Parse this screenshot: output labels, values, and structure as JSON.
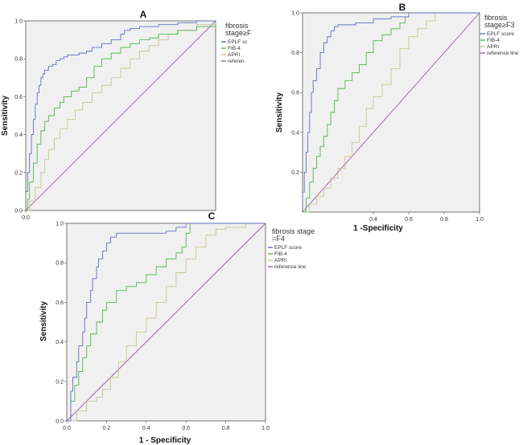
{
  "chart_data": [
    {
      "panel": "A",
      "type": "line",
      "title": "A",
      "xlabel": "",
      "ylabel": "Sensitivity",
      "xlim": [
        0,
        1
      ],
      "ylim": [
        0,
        1
      ],
      "x_ticks": [
        "0.0"
      ],
      "y_ticks": [
        "0.0",
        "0.2",
        "0.4",
        "0.6",
        "0.8",
        "1.0"
      ],
      "legend_title": [
        "fibrosis",
        "stage≥F"
      ],
      "legend_location": "right",
      "series": [
        {
          "name": "EPLF sc",
          "color": "#6070c0",
          "x": [
            0,
            0,
            0.01,
            0.02,
            0.03,
            0.04,
            0.05,
            0.06,
            0.07,
            0.08,
            0.09,
            0.1,
            0.12,
            0.14,
            0.16,
            0.18,
            0.2,
            0.22,
            0.25,
            0.28,
            0.32,
            0.35,
            0.4,
            0.45,
            0.5,
            0.52,
            0.55,
            0.6,
            0.65,
            0.7,
            0.75,
            0.8,
            0.9,
            1.0
          ],
          "y": [
            0,
            0.1,
            0.2,
            0.3,
            0.4,
            0.48,
            0.56,
            0.62,
            0.66,
            0.7,
            0.72,
            0.74,
            0.76,
            0.77,
            0.79,
            0.8,
            0.81,
            0.82,
            0.82,
            0.83,
            0.84,
            0.86,
            0.88,
            0.9,
            0.93,
            0.95,
            0.96,
            0.97,
            0.97,
            0.98,
            0.98,
            0.99,
            1.0,
            1.0
          ]
        },
        {
          "name": "FIB-4",
          "color": "#4fb84f",
          "x": [
            0,
            0.01,
            0.02,
            0.04,
            0.06,
            0.08,
            0.1,
            0.12,
            0.15,
            0.18,
            0.2,
            0.24,
            0.28,
            0.32,
            0.36,
            0.4,
            0.45,
            0.5,
            0.55,
            0.6,
            0.65,
            0.7,
            0.8,
            0.9,
            1.0
          ],
          "y": [
            0,
            0.06,
            0.15,
            0.25,
            0.35,
            0.42,
            0.47,
            0.5,
            0.54,
            0.57,
            0.6,
            0.63,
            0.65,
            0.7,
            0.76,
            0.8,
            0.83,
            0.86,
            0.88,
            0.9,
            0.91,
            0.93,
            0.95,
            0.97,
            1.0
          ]
        },
        {
          "name": "APRI",
          "color": "#cbc396",
          "x": [
            0,
            0.02,
            0.05,
            0.08,
            0.1,
            0.12,
            0.15,
            0.18,
            0.22,
            0.26,
            0.3,
            0.35,
            0.4,
            0.45,
            0.5,
            0.55,
            0.6,
            0.65,
            0.7,
            0.75,
            0.8,
            0.9,
            1.0
          ],
          "y": [
            0,
            0.05,
            0.12,
            0.2,
            0.27,
            0.32,
            0.38,
            0.43,
            0.48,
            0.53,
            0.57,
            0.62,
            0.66,
            0.7,
            0.75,
            0.8,
            0.84,
            0.87,
            0.9,
            0.93,
            0.95,
            0.98,
            1.0
          ]
        },
        {
          "name": "referen",
          "color": "#9b5aa8",
          "x": [
            0,
            1
          ],
          "y": [
            0,
            1
          ]
        }
      ]
    },
    {
      "panel": "B",
      "type": "line",
      "title": "B",
      "xlabel": "1 -Specificity",
      "ylabel": "Sensitivity",
      "xlim": [
        0,
        1
      ],
      "ylim": [
        0,
        1
      ],
      "x_ticks": [
        "0.4",
        "0.6",
        "0.8",
        "1.0"
      ],
      "y_ticks": [
        "0.2",
        "0.4",
        "0.6",
        "0.8",
        "1.0"
      ],
      "legend_title": [
        "fibrosis",
        "stage≥F3"
      ],
      "legend_location": "right",
      "series": [
        {
          "name": "EPLF score",
          "color": "#6070c0",
          "x": [
            0,
            0,
            0.01,
            0.02,
            0.03,
            0.04,
            0.05,
            0.06,
            0.08,
            0.1,
            0.12,
            0.14,
            0.16,
            0.18,
            0.2,
            0.25,
            0.3,
            0.4,
            0.5,
            0.6,
            0.7,
            0.8,
            1.0
          ],
          "y": [
            0,
            0.1,
            0.2,
            0.3,
            0.4,
            0.5,
            0.6,
            0.66,
            0.72,
            0.8,
            0.85,
            0.88,
            0.91,
            0.93,
            0.94,
            0.94,
            0.95,
            0.97,
            0.98,
            1.0,
            1.0,
            1.0,
            1.0
          ]
        },
        {
          "name": "FIB-4",
          "color": "#4fb84f",
          "x": [
            0,
            0.02,
            0.04,
            0.06,
            0.08,
            0.1,
            0.12,
            0.14,
            0.16,
            0.18,
            0.2,
            0.24,
            0.28,
            0.32,
            0.36,
            0.4,
            0.45,
            0.5,
            0.55,
            0.58,
            0.6,
            0.7,
            0.8,
            1.0
          ],
          "y": [
            0,
            0.07,
            0.15,
            0.22,
            0.28,
            0.33,
            0.38,
            0.44,
            0.5,
            0.56,
            0.62,
            0.66,
            0.7,
            0.74,
            0.8,
            0.86,
            0.89,
            0.92,
            0.95,
            0.98,
            1.0,
            1.0,
            1.0,
            1.0
          ]
        },
        {
          "name": "APRI",
          "color": "#cbc396",
          "x": [
            0,
            0.04,
            0.08,
            0.12,
            0.16,
            0.2,
            0.24,
            0.28,
            0.32,
            0.36,
            0.4,
            0.45,
            0.5,
            0.55,
            0.6,
            0.65,
            0.7,
            0.75,
            0.8,
            0.9,
            1.0
          ],
          "y": [
            0,
            0.04,
            0.08,
            0.12,
            0.17,
            0.22,
            0.28,
            0.35,
            0.43,
            0.52,
            0.58,
            0.64,
            0.72,
            0.82,
            0.88,
            0.92,
            0.96,
            1.0,
            1.0,
            1.0,
            1.0
          ]
        },
        {
          "name": "reference line",
          "color": "#9b5aa8",
          "x": [
            0,
            1
          ],
          "y": [
            0,
            1
          ]
        }
      ]
    },
    {
      "panel": "C",
      "type": "line",
      "title": "C",
      "xlabel": "1 - Specificity",
      "ylabel": "Sensitivity",
      "xlim": [
        0,
        1
      ],
      "ylim": [
        0,
        1
      ],
      "x_ticks": [
        "0.0",
        "0.2",
        "0.4",
        "0.6",
        "0.8",
        "1.0"
      ],
      "y_ticks": [
        "0.0",
        "0.2",
        "0.4",
        "0.6",
        "0.8",
        "1.0"
      ],
      "legend_title": [
        "fibrosis stage",
        "=F4"
      ],
      "legend_location": "right",
      "series": [
        {
          "name": "EPLF score",
          "color": "#6070c0",
          "x": [
            0,
            0.02,
            0.03,
            0.05,
            0.06,
            0.08,
            0.09,
            0.1,
            0.12,
            0.13,
            0.15,
            0.16,
            0.18,
            0.2,
            0.22,
            0.25,
            0.3,
            0.4,
            0.5,
            0.55,
            0.6,
            0.7,
            0.8,
            1.0
          ],
          "y": [
            0,
            0.15,
            0.22,
            0.3,
            0.38,
            0.45,
            0.52,
            0.6,
            0.66,
            0.72,
            0.78,
            0.82,
            0.86,
            0.9,
            0.93,
            0.95,
            0.95,
            0.95,
            0.96,
            0.98,
            1.0,
            1.0,
            1.0,
            1.0
          ]
        },
        {
          "name": "FIB-4",
          "color": "#4fb84f",
          "x": [
            0,
            0.02,
            0.04,
            0.06,
            0.08,
            0.1,
            0.12,
            0.15,
            0.18,
            0.2,
            0.25,
            0.3,
            0.35,
            0.4,
            0.45,
            0.5,
            0.55,
            0.58,
            0.6,
            0.62,
            0.7,
            0.8,
            1.0
          ],
          "y": [
            0,
            0.1,
            0.18,
            0.25,
            0.32,
            0.38,
            0.44,
            0.5,
            0.56,
            0.6,
            0.66,
            0.68,
            0.7,
            0.74,
            0.78,
            0.82,
            0.85,
            0.88,
            0.95,
            1.0,
            1.0,
            1.0,
            1.0
          ]
        },
        {
          "name": "APRI",
          "color": "#cbc396",
          "x": [
            0,
            0.05,
            0.1,
            0.15,
            0.18,
            0.22,
            0.26,
            0.3,
            0.35,
            0.4,
            0.45,
            0.5,
            0.55,
            0.6,
            0.65,
            0.7,
            0.75,
            0.8,
            0.9,
            1.0
          ],
          "y": [
            0,
            0.05,
            0.1,
            0.12,
            0.16,
            0.22,
            0.3,
            0.38,
            0.45,
            0.52,
            0.6,
            0.68,
            0.75,
            0.82,
            0.88,
            0.94,
            0.97,
            0.98,
            1.0,
            1.0
          ]
        },
        {
          "name": "reference line",
          "color": "#9b5aa8",
          "x": [
            0,
            1
          ],
          "y": [
            0,
            1
          ]
        }
      ]
    }
  ]
}
